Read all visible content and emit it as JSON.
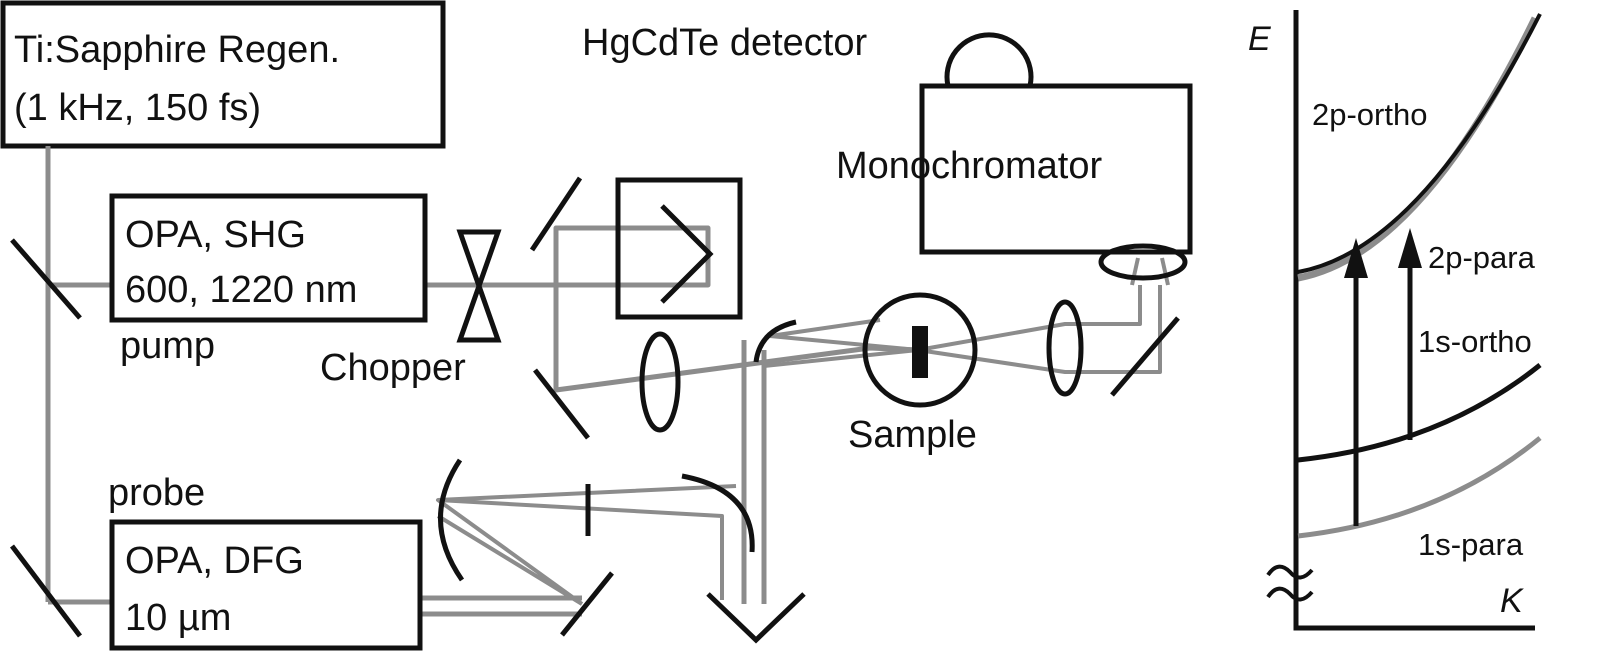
{
  "setup": {
    "laser_title": "Ti:Sapphire Regen.",
    "laser_params": "(1 kHz, 150 fs)",
    "opa_pump_title": "OPA, SHG",
    "opa_pump_wavelengths": "600, 1220 nm",
    "pump_label": "pump",
    "chopper_label": "Chopper",
    "probe_label": "probe",
    "opa_probe_title": "OPA, DFG",
    "opa_probe_wavelength": "10 µm",
    "detector_label": "HgCdTe detector",
    "monochromator_label": "Monochromator",
    "sample_label": "Sample"
  },
  "energy_diagram": {
    "y_axis_label": "E",
    "x_axis_label": "K",
    "bands": [
      {
        "name": "2p-ortho",
        "color": "#111111"
      },
      {
        "name": "2p-para",
        "color": "#8c8c8c"
      },
      {
        "name": "1s-ortho",
        "color": "#111111"
      },
      {
        "name": "1s-para",
        "color": "#8c8c8c"
      }
    ]
  },
  "colors": {
    "lines": "#111111",
    "beam": "#8c8c8c",
    "background": "#ffffff"
  }
}
